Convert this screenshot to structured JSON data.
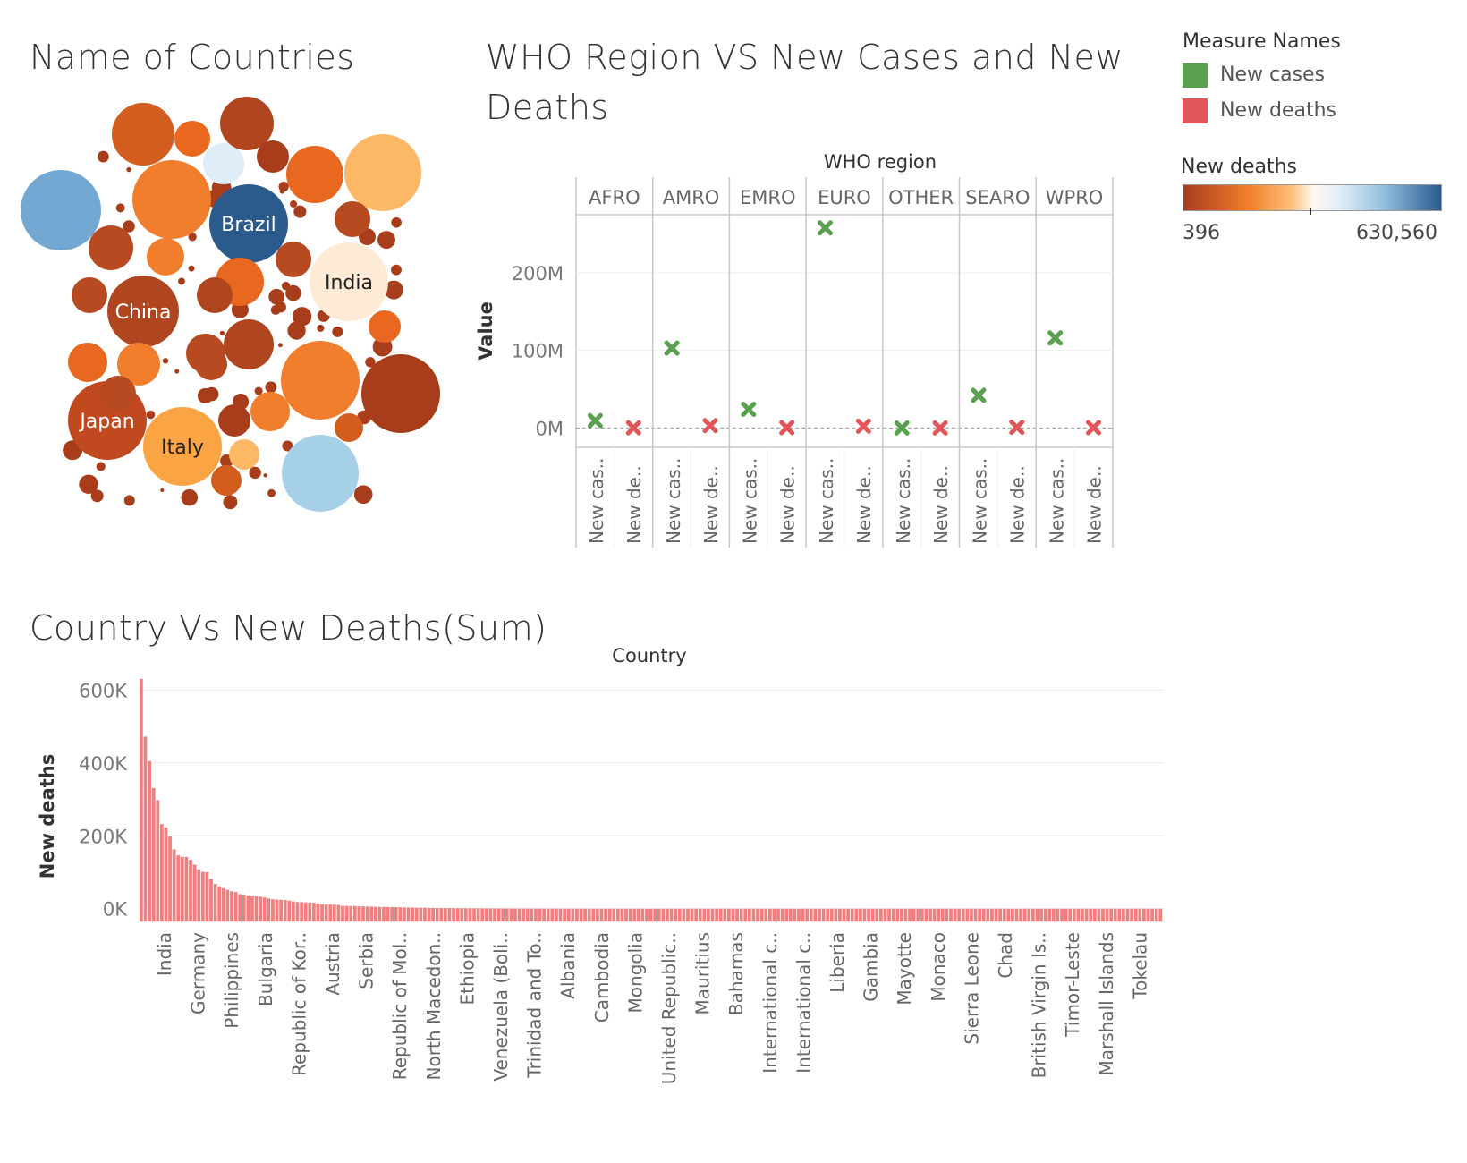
{
  "titles": {
    "bubble": "Name of Countries",
    "scatter_line1": "WHO Region VS New Cases and New",
    "scatter_line2": "Deaths",
    "bar": "Country Vs New Deaths(Sum)"
  },
  "legend": {
    "measure_title": "Measure Names",
    "measures": [
      {
        "label": "New cases",
        "color": "#59a14f"
      },
      {
        "label": "New deaths",
        "color": "#e15759"
      }
    ],
    "gradient_title": "New deaths",
    "gradient_min": "396",
    "gradient_max": "630,560"
  },
  "chart_data": [
    {
      "type": "bubble",
      "title": "Name of Countries",
      "color_scale": {
        "field": "New deaths",
        "min": 396,
        "max": 630560,
        "colors": [
          "#a83d1c",
          "#f07e2d",
          "#ffe8cf",
          "#c5e0f0",
          "#2b5b8c"
        ]
      },
      "labeled": [
        {
          "label": "Brazil",
          "color": "#2b5b8c"
        },
        {
          "label": "India",
          "color": "#fdebd6"
        },
        {
          "label": "China",
          "color": "#b0461f"
        },
        {
          "label": "Japan",
          "color": "#c14920"
        },
        {
          "label": "Italy",
          "color": "#fba444"
        }
      ]
    },
    {
      "type": "scatter",
      "title": "WHO Region VS New Cases and New Deaths",
      "column_header": "WHO region",
      "regions": [
        "AFRO",
        "AMRO",
        "EMRO",
        "EURO",
        "OTHER",
        "SEARO",
        "WPRO"
      ],
      "measure_ticks": [
        "New cas..",
        "New de.."
      ],
      "ylabel": "Value",
      "yticks": [
        "200M",
        "100M",
        "0M"
      ],
      "ylim": [
        -25000000,
        275000000
      ],
      "series": [
        {
          "name": "New cases",
          "values": [
            9500000,
            103000000,
            24000000,
            258000000,
            800,
            42000000,
            116000000
          ]
        },
        {
          "name": "New deaths",
          "values": [
            175000,
            2960000,
            352000,
            2250000,
            15,
            805000,
            420000
          ]
        }
      ]
    },
    {
      "type": "bar",
      "title": "Country Vs New Deaths(Sum)",
      "xlabel": "Country",
      "ylabel": "New deaths",
      "yticks": [
        "600K",
        "400K",
        "200K",
        "0K"
      ],
      "ylim": [
        -35000,
        640000
      ],
      "color": "#f08080",
      "visible_labels": [
        "India",
        "Germany",
        "Philippines",
        "Bulgaria",
        "Republic of Kor..",
        "Austria",
        "Serbia",
        "Republic of Mol..",
        "North Macedon..",
        "Ethiopia",
        "Venezuela (Boli..",
        "Trinidad and To..",
        "Albania",
        "Cambodia",
        "Mongolia",
        "United Republic..",
        "Mauritius",
        "Bahamas",
        "International c..",
        "International c..",
        "Liberia",
        "Gambia",
        "Mayotte",
        "Monaco",
        "Sierra Leone",
        "Chad",
        "British Virgin Is..",
        "Timor-Leste",
        "Marshall Islands",
        "Tokelau"
      ],
      "values": [
        630560,
        472000,
        405000,
        331000,
        298000,
        232000,
        223000,
        198000,
        163000,
        146000,
        142000,
        142000,
        134000,
        121000,
        108000,
        101000,
        100000,
        82000,
        68000,
        61000,
        56000,
        52000,
        48000,
        46000,
        40000,
        39000,
        36000,
        35000,
        34000,
        33000,
        31000,
        28000,
        26000,
        25000,
        24500,
        24000,
        22000,
        20000,
        18500,
        18000,
        17500,
        17000,
        16500,
        14000,
        12500,
        12000,
        11500,
        11000,
        10500,
        8000,
        7500,
        7200,
        7000,
        6500,
        6200,
        6000,
        5500,
        5200,
        5000,
        4800,
        4600,
        4400,
        4200,
        4000,
        3500,
        3200,
        3000,
        2800,
        2600,
        2400,
        2200,
        2000,
        1900,
        1800,
        1700,
        1600,
        1500,
        1400,
        1300,
        1200,
        1100,
        1050,
        1000,
        950,
        900,
        850,
        800,
        750,
        700,
        650,
        600,
        550,
        500,
        450,
        400,
        350,
        300,
        250,
        200,
        150,
        120,
        100,
        80,
        60,
        50,
        40,
        30,
        20,
        10,
        5,
        2,
        1,
        0,
        0,
        0,
        0,
        0,
        0,
        0,
        0,
        0,
        0,
        0,
        0,
        0,
        0,
        0,
        0,
        0,
        0,
        0,
        0,
        0,
        0,
        0,
        0,
        0,
        0,
        0,
        0,
        0,
        0,
        0,
        0,
        0,
        0,
        0,
        0,
        0,
        0,
        0,
        0,
        0,
        0,
        0,
        0,
        0,
        0,
        0,
        0,
        0,
        0,
        0,
        0,
        0,
        0,
        0,
        0,
        0,
        0,
        0,
        0,
        0,
        0,
        0,
        0,
        0,
        0,
        0,
        0,
        0,
        0,
        0,
        0,
        0,
        0,
        0,
        0,
        0,
        0,
        0,
        0,
        0,
        0,
        0,
        0,
        0,
        0,
        0,
        0,
        0,
        0,
        0,
        0,
        0,
        0,
        0,
        0,
        0,
        0,
        0,
        0,
        0,
        0,
        0,
        0,
        0,
        0,
        0,
        0,
        0,
        0,
        0,
        0,
        0,
        0,
        0,
        0,
        0,
        0,
        0,
        0,
        0,
        0,
        0,
        0,
        0,
        0,
        0,
        0,
        0,
        0,
        0,
        0,
        0,
        0,
        0,
        0,
        0
      ]
    }
  ]
}
